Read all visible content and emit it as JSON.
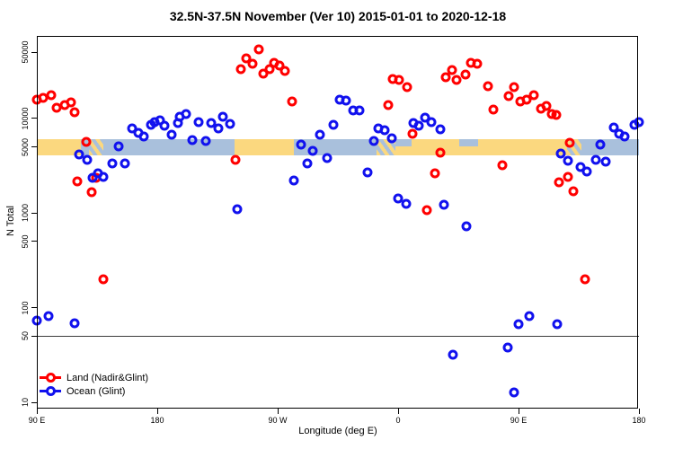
{
  "header": {
    "title": "32.5N-37.5N November (Ver 10)   2015-01-01 to 2020-12-18"
  },
  "chart_data": {
    "type": "scatter",
    "title": "32.5N-37.5N November (Ver 10)   2015-01-01 to 2020-12-18",
    "xlabel": "Longitude (deg E)",
    "ylabel": "N Total",
    "y_scale": "log10",
    "ylim": [
      10,
      70000
    ],
    "y_ticks": [
      10,
      50,
      100,
      500,
      1000,
      5000,
      10000,
      50000
    ],
    "x_axis_span_deg": 450,
    "x_ticks": [
      {
        "deg": 0,
        "label": "90 E"
      },
      {
        "deg": 90,
        "label": "180"
      },
      {
        "deg": 180,
        "label": "90 W"
      },
      {
        "deg": 270,
        "label": "0"
      },
      {
        "deg": 360,
        "label": "90 E"
      },
      {
        "deg": 450,
        "label": "180"
      }
    ],
    "reference_line_n": 50,
    "band": {
      "description": "surface-type band at N~5000: land (wheat) vs ocean (light blue) along longitude",
      "n_top": 5900,
      "n_bottom": 4200,
      "segments": [
        {
          "from_deg": 0,
          "to_deg": 33,
          "type": "land"
        },
        {
          "from_deg": 33,
          "to_deg": 39,
          "type": "ocean"
        },
        {
          "from_deg": 39,
          "to_deg": 50,
          "type": "mixed"
        },
        {
          "from_deg": 50,
          "to_deg": 148,
          "type": "ocean"
        },
        {
          "from_deg": 148,
          "to_deg": 192,
          "type": "land"
        },
        {
          "from_deg": 192,
          "to_deg": 254,
          "type": "ocean"
        },
        {
          "from_deg": 254,
          "to_deg": 268,
          "type": "mixed"
        },
        {
          "from_deg": 268,
          "to_deg": 280,
          "type": "split"
        },
        {
          "from_deg": 280,
          "to_deg": 316,
          "type": "land"
        },
        {
          "from_deg": 316,
          "to_deg": 330,
          "type": "split"
        },
        {
          "from_deg": 330,
          "to_deg": 396,
          "type": "land"
        },
        {
          "from_deg": 396,
          "to_deg": 407,
          "type": "mixed"
        },
        {
          "from_deg": 407,
          "to_deg": 450,
          "type": "ocean"
        }
      ]
    },
    "legend": {
      "position": "bottom-left"
    },
    "series": [
      {
        "name": "Land (Nadir&Glint)",
        "color": "#ff0000",
        "points": [
          [
            0,
            15700
          ],
          [
            4.7,
            16450
          ],
          [
            10.7,
            17570
          ],
          [
            14.8,
            12940
          ],
          [
            20.8,
            13810
          ],
          [
            25.5,
            14750
          ],
          [
            28.2,
            11600
          ],
          [
            36.9,
            5640
          ],
          [
            30.2,
            2160
          ],
          [
            41,
            1660
          ],
          [
            44.3,
            2360
          ],
          [
            49.7,
            200
          ],
          [
            148.4,
            3650
          ],
          [
            152.4,
            33000
          ],
          [
            156.5,
            43000
          ],
          [
            161.2,
            37700
          ],
          [
            165.9,
            53500
          ],
          [
            169.2,
            29600
          ],
          [
            173.9,
            33000
          ],
          [
            177.3,
            38500
          ],
          [
            181.3,
            36000
          ],
          [
            185.3,
            31500
          ],
          [
            190.7,
            15060
          ],
          [
            262.6,
            13810
          ],
          [
            265.9,
            26000
          ],
          [
            270.6,
            25430
          ],
          [
            276.7,
            21380
          ],
          [
            280.7,
            6870
          ],
          [
            291.4,
            1070
          ],
          [
            297.5,
            2630
          ],
          [
            301.5,
            4340
          ],
          [
            305.5,
            27200
          ],
          [
            310.2,
            32400
          ],
          [
            313.6,
            25430
          ],
          [
            320.3,
            29000
          ],
          [
            324.3,
            38500
          ],
          [
            329,
            37700
          ],
          [
            337.1,
            21860
          ],
          [
            341.1,
            12380
          ],
          [
            347.8,
            3200
          ],
          [
            352.5,
            17180
          ],
          [
            356.6,
            21380
          ],
          [
            361.3,
            15060
          ],
          [
            366,
            15740
          ],
          [
            371.3,
            17570
          ],
          [
            376.7,
            12660
          ],
          [
            380.7,
            13500
          ],
          [
            384.8,
            11090
          ],
          [
            388.1,
            10850
          ],
          [
            390.1,
            2110
          ],
          [
            396.8,
            2410
          ],
          [
            400.9,
            1700
          ],
          [
            398.2,
            5520
          ],
          [
            409.6,
            200
          ]
        ]
      },
      {
        "name": "Ocean (Glint)",
        "color": "#1111ee",
        "points": [
          [
            31.6,
            4160
          ],
          [
            37.6,
            3650
          ],
          [
            41.6,
            2330
          ],
          [
            45.7,
            2600
          ],
          [
            49.7,
            2430
          ],
          [
            56.4,
            3360
          ],
          [
            61.1,
            5060
          ],
          [
            65.8,
            3360
          ],
          [
            0,
            73
          ],
          [
            8.7,
            81
          ],
          [
            28.2,
            68
          ],
          [
            71.2,
            7780
          ],
          [
            75.9,
            6980
          ],
          [
            79.9,
            6420
          ],
          [
            85.3,
            8500
          ],
          [
            88,
            9050
          ],
          [
            92,
            9630
          ],
          [
            95.4,
            8330
          ],
          [
            100.7,
            6700
          ],
          [
            105.4,
            8870
          ],
          [
            106.8,
            10300
          ],
          [
            111.5,
            11090
          ],
          [
            116.2,
            5900
          ],
          [
            120.9,
            9050
          ],
          [
            126.2,
            5770
          ],
          [
            130.3,
            8870
          ],
          [
            135.6,
            7780
          ],
          [
            139,
            10300
          ],
          [
            144.4,
            8690
          ],
          [
            149.8,
            1095
          ],
          [
            192.1,
            2220
          ],
          [
            197.4,
            5280
          ],
          [
            202.1,
            3360
          ],
          [
            206.2,
            4530
          ],
          [
            211.5,
            6700
          ],
          [
            216.9,
            3800
          ],
          [
            221.6,
            8500
          ],
          [
            226.3,
            15740
          ],
          [
            231,
            15400
          ],
          [
            236.4,
            12100
          ],
          [
            241.1,
            12100
          ],
          [
            247.1,
            2690
          ],
          [
            251.8,
            5770
          ],
          [
            255.2,
            7780
          ],
          [
            259.9,
            7440
          ],
          [
            265.3,
            6140
          ],
          [
            281.4,
            8870
          ],
          [
            285.4,
            8330
          ],
          [
            290.1,
            10070
          ],
          [
            294.8,
            9050
          ],
          [
            301.5,
            7600
          ],
          [
            270,
            1420
          ],
          [
            276,
            1250
          ],
          [
            304.2,
            1230
          ],
          [
            321,
            730
          ],
          [
            310.9,
            32
          ],
          [
            351.9,
            38
          ],
          [
            356.6,
            12.7
          ],
          [
            360,
            67
          ],
          [
            368,
            81
          ],
          [
            388.8,
            67
          ],
          [
            391.5,
            4250
          ],
          [
            396.8,
            3560
          ],
          [
            406.2,
            3060
          ],
          [
            410.9,
            2760
          ],
          [
            417.6,
            3650
          ],
          [
            425,
            3490
          ],
          [
            421,
            5280
          ],
          [
            431.1,
            7950
          ],
          [
            435.1,
            6830
          ],
          [
            439.2,
            6420
          ],
          [
            446.6,
            8500
          ],
          [
            450,
            9050
          ]
        ]
      }
    ]
  },
  "colors": {
    "band_land": "#fbd87f",
    "band_ocean": "#a9c0dc",
    "axis": "#000000",
    "reference_line": "#3c3c3c",
    "land_marker": "#ff0000",
    "ocean_marker": "#1111ee"
  }
}
